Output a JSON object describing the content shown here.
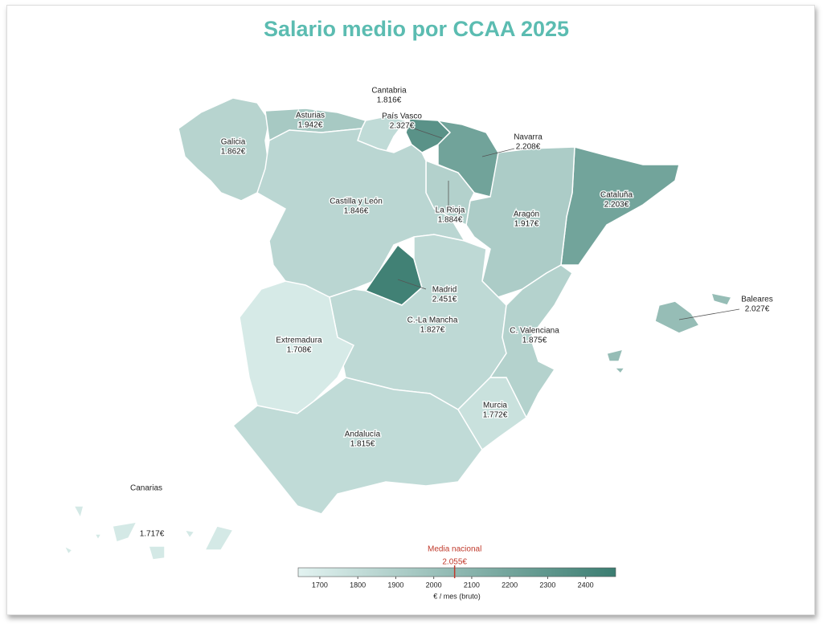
{
  "chart_data": {
    "type": "choropleth",
    "title": "Salario medio por CCAA 2025",
    "categories": [
      "Galicia",
      "Asturias",
      "Cantabria",
      "País Vasco",
      "Navarra",
      "Cataluña",
      "Aragón",
      "La Rioja",
      "Castilla y León",
      "Madrid",
      "C.-La Mancha",
      "Extremadura",
      "Andalucía",
      "Murcia",
      "C. Valenciana",
      "Baleares",
      "Canarias"
    ],
    "values": [
      1862,
      1942,
      1816,
      2327,
      2208,
      2203,
      1917,
      1884,
      1846,
      2451,
      1827,
      1708,
      1815,
      1772,
      1875,
      2027,
      1717
    ],
    "value_labels": [
      "1.862€",
      "1.942€",
      "1.816€",
      "2.327€",
      "2.208€",
      "2.203€",
      "1.917€",
      "1.884€",
      "1.846€",
      "2.451€",
      "1.827€",
      "1.708€",
      "1.815€",
      "1.772€",
      "1.875€",
      "2.027€",
      "1.717€"
    ],
    "colorscale": [
      "#e3f3f1",
      "#3b7d71"
    ],
    "colorbar": {
      "title": "€ / mes (bruto)",
      "range": [
        1643,
        2479
      ],
      "ticks": [
        1700,
        1800,
        1900,
        2000,
        2100,
        2200,
        2300,
        2400
      ]
    },
    "reference": {
      "label": "Media nacional",
      "value": 2055,
      "value_label": "2.055€",
      "color": "#c0392b"
    }
  }
}
